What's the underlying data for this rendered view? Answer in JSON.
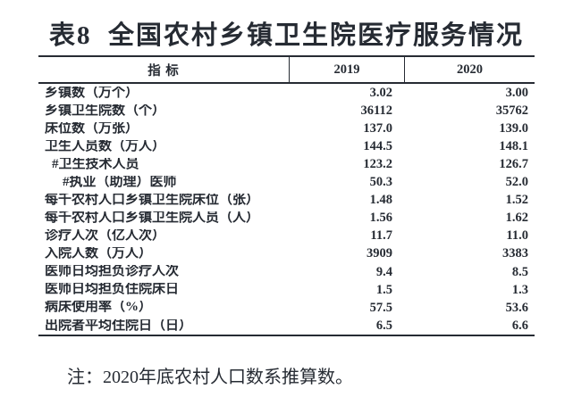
{
  "title": "表8  全国农村乡镇卫生院医疗服务情况",
  "note": "注：2020年底农村人口数系推算数。",
  "colors": {
    "text": "#262b33",
    "border": "#262b33",
    "background": "#ffffff"
  },
  "table": {
    "columns": [
      "指 标",
      "2019",
      "2020"
    ],
    "rows": [
      {
        "label": "乡镇数（万个）",
        "indent": 0,
        "y2019": "3.02",
        "y2020": "3.00"
      },
      {
        "label": "乡镇卫生院数（个）",
        "indent": 0,
        "y2019": "36112",
        "y2020": "35762"
      },
      {
        "label": "床位数（万张）",
        "indent": 0,
        "y2019": "137.0",
        "y2020": "139.0"
      },
      {
        "label": "卫生人员数（万人）",
        "indent": 0,
        "y2019": "144.5",
        "y2020": "148.1"
      },
      {
        "label": "#卫生技术人员",
        "indent": 1,
        "y2019": "123.2",
        "y2020": "126.7"
      },
      {
        "label": "#执业（助理）医师",
        "indent": 2,
        "y2019": "50.3",
        "y2020": "52.0"
      },
      {
        "label": "每千农村人口乡镇卫生院床位（张）",
        "indent": 0,
        "y2019": "1.48",
        "y2020": "1.52"
      },
      {
        "label": "每千农村人口乡镇卫生院人员（人）",
        "indent": 0,
        "y2019": "1.56",
        "y2020": "1.62"
      },
      {
        "label": "诊疗人次（亿人次）",
        "indent": 0,
        "y2019": "11.7",
        "y2020": "11.0"
      },
      {
        "label": "入院人数（万人）",
        "indent": 0,
        "y2019": "3909",
        "y2020": "3383"
      },
      {
        "label": "医师日均担负诊疗人次",
        "indent": 0,
        "y2019": "9.4",
        "y2020": "8.5"
      },
      {
        "label": "医师日均担负住院床日",
        "indent": 0,
        "y2019": "1.5",
        "y2020": "1.3"
      },
      {
        "label": "病床使用率（%）",
        "indent": 0,
        "y2019": "57.5",
        "y2020": "53.6"
      },
      {
        "label": "出院者平均住院日（日）",
        "indent": 0,
        "y2019": "6.5",
        "y2020": "6.6"
      }
    ]
  }
}
